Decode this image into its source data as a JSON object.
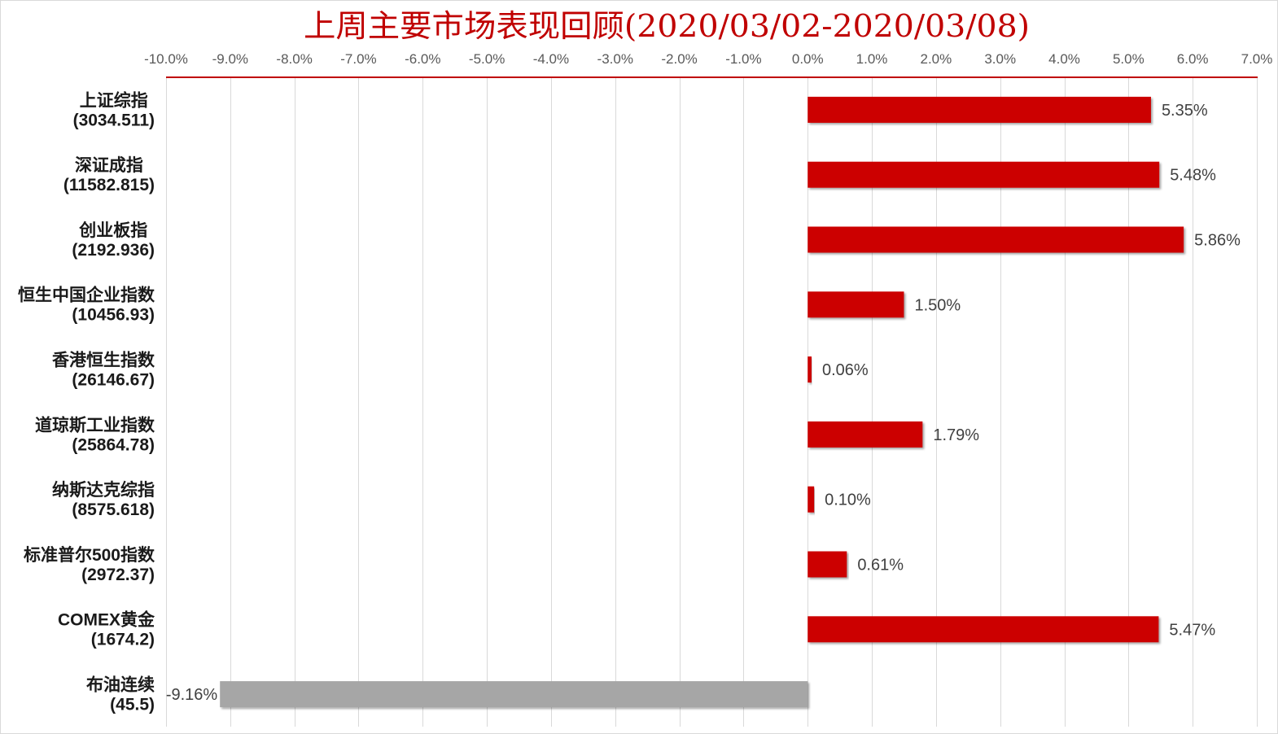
{
  "chart_data": {
    "type": "bar",
    "horizontal": true,
    "value_axis_on_top": true,
    "grid": true,
    "legend": false,
    "title": "上周主要市场表现回顾(2020/03/02-2020/03/08)",
    "xlim": [
      -10,
      7
    ],
    "x_ticks": [
      -10,
      -9,
      -8,
      -7,
      -6,
      -5,
      -4,
      -3,
      -2,
      -1,
      0,
      1,
      2,
      3,
      4,
      5,
      6,
      7
    ],
    "x_tick_labels": [
      "-10.0%",
      "-9.0%",
      "-8.0%",
      "-7.0%",
      "-6.0%",
      "-5.0%",
      "-4.0%",
      "-3.0%",
      "-2.0%",
      "-1.0%",
      "0.0%",
      "1.0%",
      "2.0%",
      "3.0%",
      "4.0%",
      "5.0%",
      "6.0%",
      "7.0%"
    ],
    "categories": [
      {
        "name": "上证综指",
        "level": "(3034.511)"
      },
      {
        "name": "深证成指",
        "level": "(11582.815)"
      },
      {
        "name": "创业板指",
        "level": "(2192.936)"
      },
      {
        "name": "恒生中国企业指数",
        "level": "(10456.93)"
      },
      {
        "name": "香港恒生指数",
        "level": "(26146.67)"
      },
      {
        "name": "道琼斯工业指数",
        "level": "(25864.78)"
      },
      {
        "name": "纳斯达克综指",
        "level": "(8575.618)"
      },
      {
        "name": "标准普尔500指数",
        "level": "(2972.37)"
      },
      {
        "name": "COMEX黄金",
        "level": "(1674.2)"
      },
      {
        "name": "布油连续",
        "level": "(45.5)"
      }
    ],
    "values": [
      5.35,
      5.48,
      5.86,
      1.5,
      0.06,
      1.79,
      0.1,
      0.61,
      5.47,
      -9.16
    ],
    "value_labels": [
      "5.35%",
      "5.48%",
      "5.86%",
      "1.50%",
      "0.06%",
      "1.79%",
      "0.10%",
      "0.61%",
      "5.47%",
      "-9.16%"
    ],
    "colors": {
      "positive": "#CC0000",
      "negative": "#A6A6A6",
      "axis_line": "#C00000",
      "grid": "#D9D9D9",
      "border": "#D9D9D9"
    }
  }
}
